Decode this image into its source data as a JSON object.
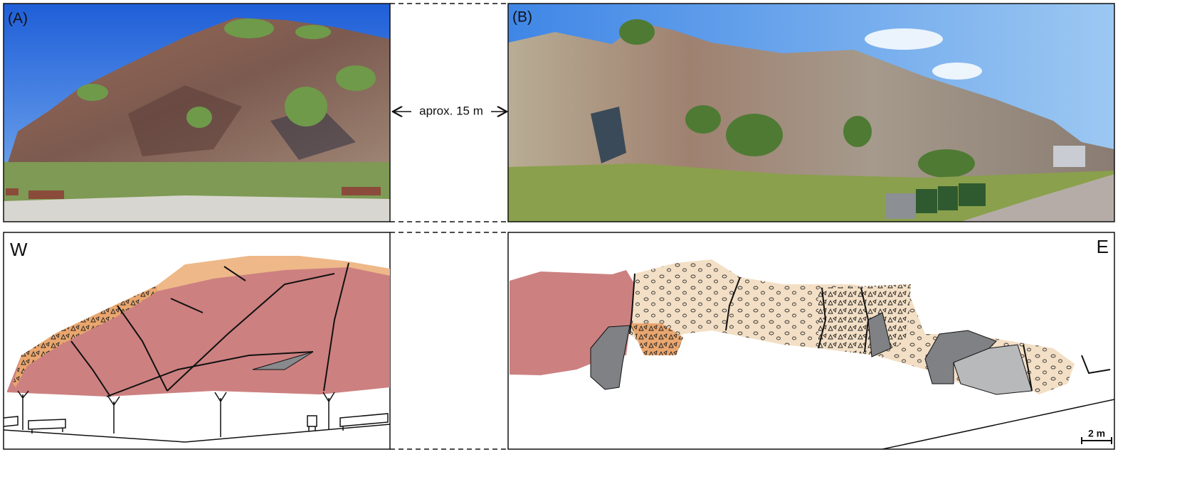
{
  "panels": {
    "photo_a": {
      "label": "(A)"
    },
    "photo_b": {
      "label": "(B)"
    },
    "distance": "aprox. 15 m",
    "west": "W",
    "east": "E",
    "scale_bar": "2 m"
  }
}
